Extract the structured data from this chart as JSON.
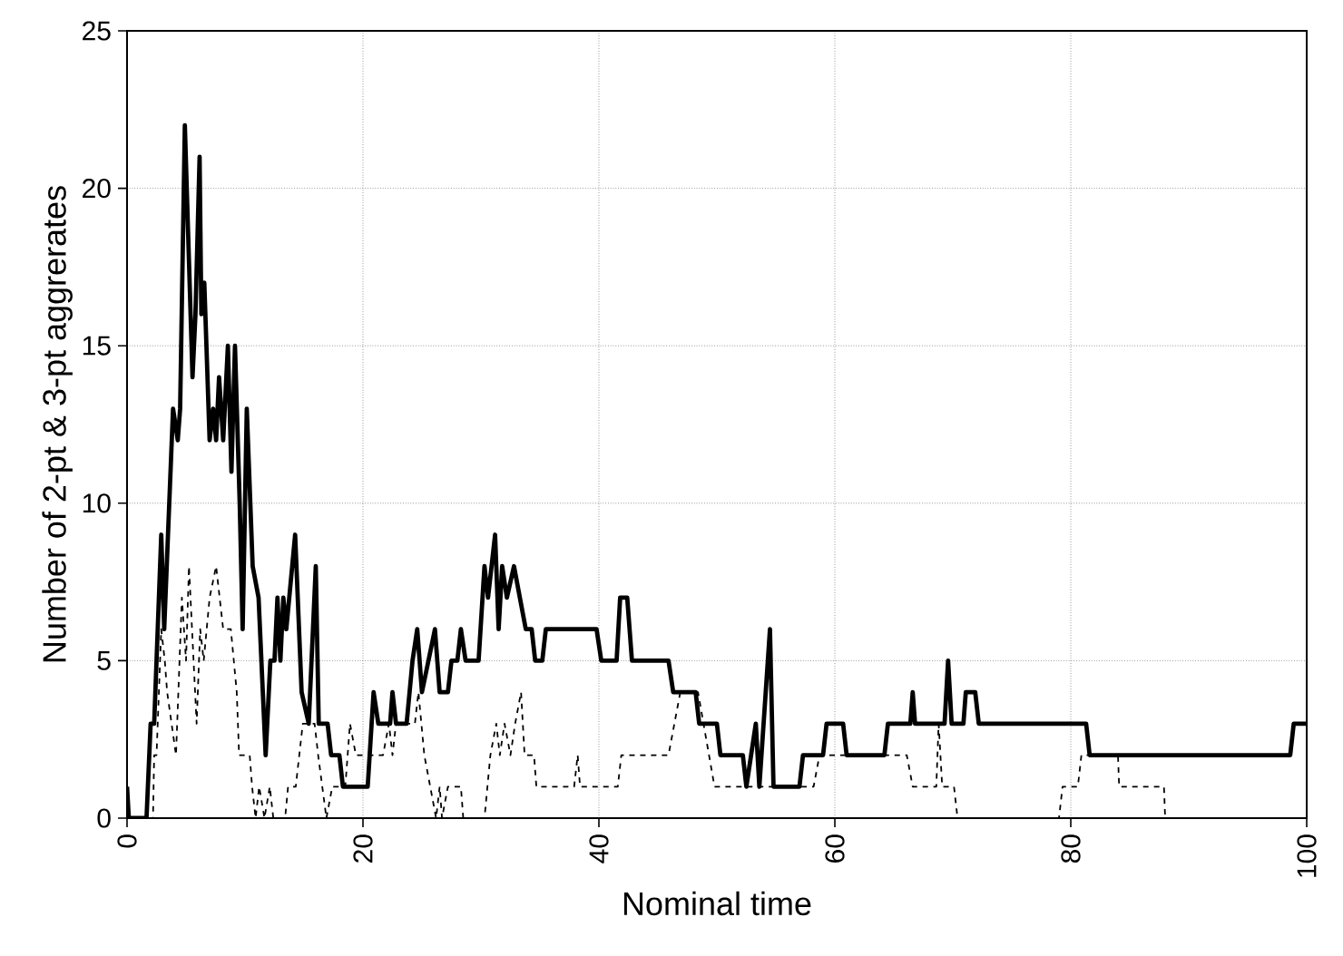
{
  "chart_data": {
    "type": "line",
    "xlabel": "Nominal time",
    "ylabel": "Number of 2-pt & 3-pt aggrerates",
    "xlim": [
      0,
      100
    ],
    "ylim": [
      0,
      25
    ],
    "xticks": [
      0,
      20,
      40,
      60,
      80,
      100
    ],
    "yticks": [
      0,
      5,
      10,
      15,
      20,
      25
    ],
    "grid": true,
    "marker": "none",
    "series": [
      {
        "color": "#000000",
        "line_style": "solid",
        "x": [
          0,
          0.15,
          1.65,
          2.0,
          2.3,
          2.9,
          3.15,
          3.9,
          4.3,
          4.5,
          4.9,
          5.55,
          5.8,
          6.15,
          6.3,
          6.55,
          7.0,
          7.3,
          7.55,
          7.8,
          8.15,
          8.55,
          8.85,
          9.15,
          9.55,
          9.8,
          10.15,
          10.65,
          11.15,
          11.75,
          12.15,
          12.5,
          12.75,
          13.0,
          13.25,
          13.5,
          14.25,
          14.8,
          15.4,
          16.0,
          16.25,
          17.0,
          17.3,
          18.0,
          18.3,
          20.4,
          20.9,
          21.3,
          22.3,
          22.5,
          22.8,
          23.7,
          24.2,
          24.6,
          25.0,
          26.1,
          26.5,
          27.2,
          27.5,
          28.0,
          28.3,
          28.7,
          29.8,
          30.3,
          30.6,
          31.2,
          31.5,
          31.8,
          32.2,
          32.8,
          33.3,
          33.8,
          34.3,
          34.6,
          35.2,
          35.5,
          39.8,
          40.2,
          41.5,
          41.8,
          42.4,
          42.8,
          45.9,
          46.3,
          48.2,
          48.5,
          50.0,
          50.3,
          52.2,
          52.5,
          53.3,
          53.6,
          54.5,
          54.8,
          57.0,
          57.3,
          59.0,
          59.3,
          60.7,
          61.0,
          64.2,
          64.5,
          66.4,
          66.6,
          66.8,
          69.3,
          69.6,
          69.9,
          70.9,
          71.1,
          71.9,
          72.2,
          81.3,
          81.6,
          98.6,
          98.9,
          100
        ],
        "values": [
          1,
          0,
          0,
          3,
          3,
          9,
          6,
          13,
          12,
          13,
          22,
          14,
          16,
          21,
          16,
          17,
          12,
          13,
          12,
          14,
          12,
          15,
          11,
          15,
          10,
          6,
          13,
          8,
          7,
          2,
          5,
          5,
          7,
          5,
          7,
          6,
          9,
          4,
          3,
          8,
          3,
          3,
          2,
          2,
          1,
          1,
          4,
          3,
          3,
          4,
          3,
          3,
          5,
          6,
          4,
          6,
          4,
          4,
          5,
          5,
          6,
          5,
          5,
          8,
          7,
          9,
          6,
          8,
          7,
          8,
          7,
          6,
          6,
          5,
          5,
          6,
          6,
          5,
          5,
          7,
          7,
          5,
          5,
          4,
          4,
          3,
          3,
          2,
          2,
          1,
          3,
          1,
          6,
          1,
          1,
          2,
          2,
          3,
          3,
          2,
          2,
          3,
          3,
          4,
          3,
          3,
          5,
          3,
          3,
          4,
          4,
          3,
          3,
          2,
          2,
          3,
          3
        ]
      },
      {
        "color": "#000000",
        "line_style": "dashed",
        "x": [
          0,
          2.2,
          2.3,
          2.5,
          2.9,
          3.2,
          3.4,
          4.15,
          4.65,
          5.0,
          5.25,
          5.9,
          6.2,
          6.5,
          7.0,
          7.55,
          8.15,
          8.8,
          9.3,
          9.5,
          10.4,
          10.6,
          10.9,
          11.2,
          11.65,
          12.1,
          12.4,
          13.4,
          13.65,
          14.3,
          14.6,
          14.9,
          15.9,
          16.2,
          16.9,
          17.4,
          18.5,
          18.9,
          19.4,
          21.7,
          22.2,
          22.5,
          22.8,
          24.4,
          24.7,
          25.2,
          25.7,
          26.2,
          26.5,
          26.7,
          27.2,
          28.3,
          28.5,
          30.3,
          30.8,
          31.3,
          31.6,
          32.0,
          32.5,
          32.9,
          33.4,
          33.7,
          34.5,
          34.7,
          37.9,
          38.2,
          38.4,
          41.6,
          41.9,
          45.9,
          46.9,
          48.4,
          49.8,
          58.2,
          58.7,
          66.1,
          66.6,
          68.6,
          68.8,
          69.1,
          70.1,
          70.4,
          79.0,
          79.3,
          80.6,
          80.9,
          84.0,
          84.1,
          87.9,
          88.0,
          100
        ],
        "values": [
          0,
          0,
          2,
          2,
          6,
          5,
          4,
          2,
          7,
          5,
          8,
          3,
          6,
          5,
          7,
          8,
          6,
          6,
          4,
          2,
          2,
          1,
          0,
          1,
          0,
          1,
          0,
          0,
          1,
          1,
          2,
          3,
          3,
          2,
          0,
          1,
          1,
          3,
          2,
          2,
          3,
          2,
          3,
          3,
          4,
          2,
          1,
          0,
          1,
          0,
          1,
          1,
          0,
          0,
          2,
          3,
          2,
          3,
          2,
          3,
          4,
          2,
          2,
          1,
          1,
          2,
          1,
          1,
          2,
          2,
          4,
          4,
          1,
          1,
          2,
          2,
          1,
          1,
          3,
          1,
          1,
          0,
          0,
          1,
          1,
          2,
          2,
          1,
          1,
          0,
          0
        ]
      }
    ]
  }
}
